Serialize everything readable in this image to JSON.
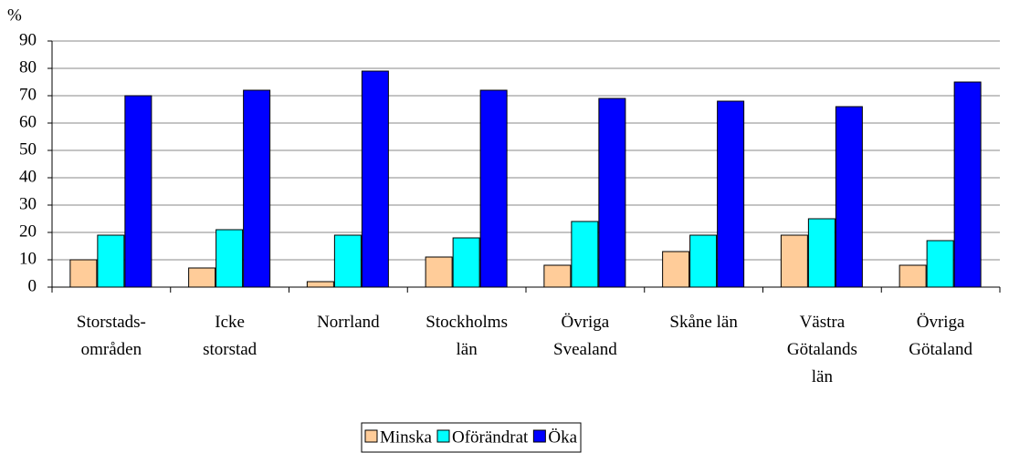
{
  "chart_data": {
    "type": "bar",
    "y_label": "%",
    "categories": [
      "Storstads-\nområden",
      "Icke\nstorstad",
      "Norrland",
      "Stockholms\nlän",
      "Övriga\nSvealand",
      "Skåne län",
      "Västra\nGötalands\nlän",
      "Övriga\nGötaland"
    ],
    "series": [
      {
        "name": "Minska",
        "color": "#ffcc99",
        "values": [
          10,
          7,
          2,
          11,
          8,
          13,
          19,
          8
        ]
      },
      {
        "name": "Oförändrat",
        "color": "#00ffff",
        "values": [
          19,
          21,
          19,
          18,
          24,
          19,
          25,
          17
        ]
      },
      {
        "name": "Öka",
        "color": "#0000ff",
        "values": [
          70,
          72,
          79,
          72,
          69,
          68,
          66,
          75
        ]
      }
    ],
    "ylim": [
      0,
      90
    ],
    "yticks": [
      0,
      10,
      20,
      30,
      40,
      50,
      60,
      70,
      80,
      90
    ],
    "grid": true,
    "legend": "bottom"
  }
}
